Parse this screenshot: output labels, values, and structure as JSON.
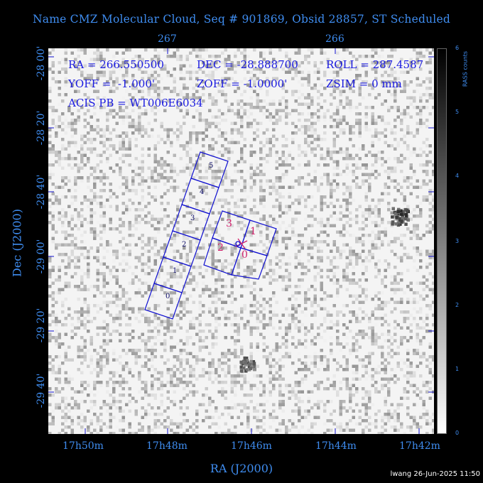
{
  "title": "Name CMZ Molecular Cloud, Seq # 901869, Obsid 28857, ST Scheduled",
  "top_ticks": [
    "267",
    "266"
  ],
  "bottom_ticks": [
    "17h50m",
    "17h48m",
    "17h46m",
    "17h44m",
    "17h42m"
  ],
  "left_ticks": [
    "-28 00'",
    "-28 20'",
    "-28 40'",
    "-29 00'",
    "-29 20'",
    "-29 40'"
  ],
  "xlabel": "RA (J2000)",
  "ylabel": "Dec (J2000)",
  "info": {
    "ra": "RA = 266.550500",
    "dec": "DEC = -28.888700",
    "roll": "ROLL = 287.4587",
    "yoff": "YOFF =  -1.000'",
    "zoff": "ZOFF = -1.0000'",
    "zsim": "ZSIM = 0 mm",
    "acis": "ACIS PB = WT006E6034"
  },
  "colorbar": {
    "label": "RASS counts",
    "ticks": [
      "0",
      "1",
      "2",
      "3",
      "4",
      "5",
      "6"
    ],
    "min": 0,
    "max": 6
  },
  "chips": {
    "s_array_labels": [
      "5",
      "4",
      "3",
      "2",
      "1",
      "0"
    ],
    "i_array_labels": [
      "3",
      "1",
      "2",
      "0"
    ]
  },
  "colors": {
    "axis_text": "#3f8df0",
    "info_text": "#1a1ae0",
    "chip_outline": "#1010d0",
    "i_array_labels": "#d0206b"
  },
  "footer": "lwang 26-Jun-2025 11:50"
}
